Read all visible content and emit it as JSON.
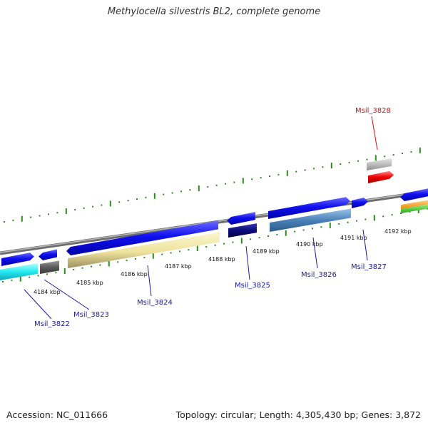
{
  "title": "Methylocella silvestris BL2, complete genome",
  "footer": {
    "accession": "Accession: NC_011666",
    "summary": "Topology: circular; Length: 4,305,430 bp; Genes: 3,872"
  },
  "colors": {
    "backbone": "#808080",
    "tick": "#2e8b1f",
    "label_blue": "#1a1aa0",
    "label_red": "#d01010"
  },
  "ticks": [
    "4184 kbp",
    "4185 kbp",
    "4186 kbp",
    "4187 kbp",
    "4188 kbp",
    "4189 kbp",
    "4190 kbp",
    "4191 kbp",
    "4192 kbp"
  ],
  "gene_labels": [
    {
      "id": "Msil_3822",
      "highlight": false
    },
    {
      "id": "Msil_3823",
      "highlight": false
    },
    {
      "id": "Msil_3824",
      "highlight": false
    },
    {
      "id": "Msil_3825",
      "highlight": false
    },
    {
      "id": "Msil_3826",
      "highlight": false
    },
    {
      "id": "Msil_3827",
      "highlight": false
    },
    {
      "id": "Msil_3828",
      "highlight": true
    }
  ]
}
